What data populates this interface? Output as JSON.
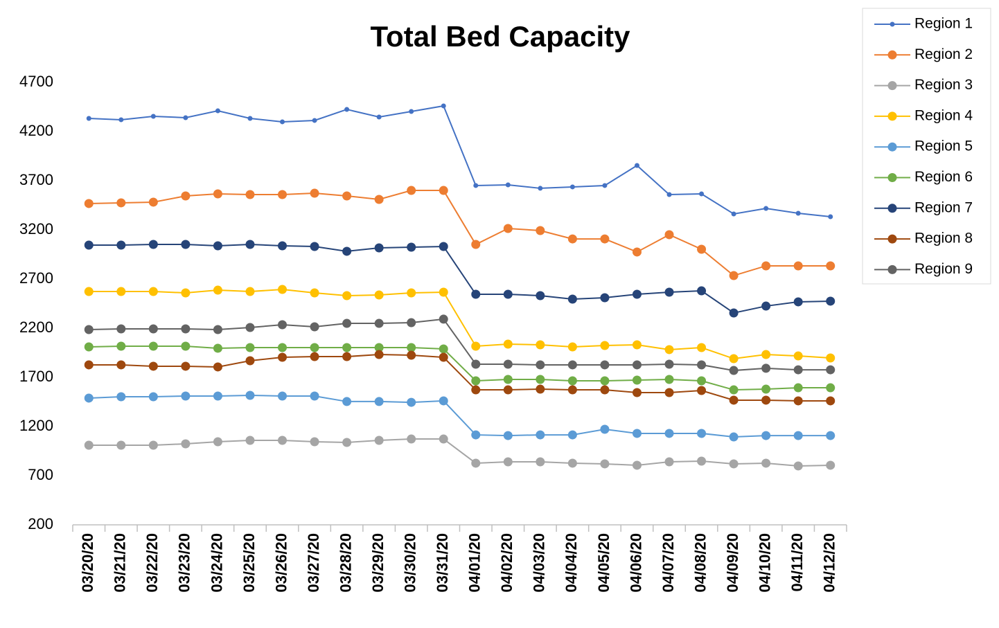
{
  "chart_data": {
    "type": "line",
    "title": "Total Bed Capacity",
    "categories": [
      "03/20/20",
      "03/21/20",
      "03/22/20",
      "03/23/20",
      "03/24/20",
      "03/25/20",
      "03/26/20",
      "03/27/20",
      "03/28/20",
      "03/29/20",
      "03/30/20",
      "03/31/20",
      "04/01/20",
      "04/02/20",
      "04/03/20",
      "04/04/20",
      "04/05/20",
      "04/06/20",
      "04/07/20",
      "04/08/20",
      "04/09/20",
      "04/10/20",
      "04/11/20",
      "04/12/20"
    ],
    "ylim": [
      200,
      4700
    ],
    "yticks": [
      200,
      700,
      1200,
      1700,
      2200,
      2700,
      3200,
      3700,
      4200,
      4700
    ],
    "grid": false,
    "legend": "right",
    "series": [
      {
        "name": "Region 1",
        "color": "#4472c4",
        "values": [
          4334,
          4320,
          4355,
          4341,
          4411,
          4334,
          4299,
          4313,
          4425,
          4348,
          4404,
          4461,
          3651,
          3658,
          3623,
          3637,
          3651,
          3855,
          3559,
          3566,
          3362,
          3418,
          3369,
          3334
        ]
      },
      {
        "name": "Region 2",
        "color": "#ed7d31",
        "values": [
          3468,
          3475,
          3482,
          3545,
          3566,
          3559,
          3559,
          3573,
          3545,
          3510,
          3601,
          3601,
          3052,
          3214,
          3193,
          3108,
          3108,
          2975,
          3151,
          3003,
          2735,
          2834,
          2834,
          2834
        ]
      },
      {
        "name": "Region 3",
        "color": "#a5a5a5",
        "values": [
          1010,
          1010,
          1010,
          1024,
          1045,
          1059,
          1059,
          1045,
          1038,
          1059,
          1073,
          1073,
          827,
          841,
          841,
          827,
          820,
          806,
          841,
          848,
          820,
          827,
          799,
          806
        ]
      },
      {
        "name": "Region 4",
        "color": "#ffc000",
        "values": [
          2573,
          2573,
          2573,
          2559,
          2587,
          2573,
          2594,
          2559,
          2531,
          2538,
          2559,
          2566,
          2017,
          2038,
          2031,
          2010,
          2024,
          2031,
          1982,
          2003,
          1890,
          1932,
          1918,
          1897
        ]
      },
      {
        "name": "Region 5",
        "color": "#5b9bd5",
        "values": [
          1489,
          1503,
          1503,
          1510,
          1510,
          1517,
          1510,
          1510,
          1454,
          1454,
          1446,
          1461,
          1115,
          1108,
          1115,
          1115,
          1172,
          1130,
          1130,
          1130,
          1094,
          1108,
          1108,
          1108
        ]
      },
      {
        "name": "Region 6",
        "color": "#70ad47",
        "values": [
          2010,
          2017,
          2017,
          2017,
          1996,
          2003,
          2003,
          2003,
          2003,
          2003,
          2003,
          1989,
          1665,
          1679,
          1679,
          1665,
          1665,
          1672,
          1679,
          1665,
          1573,
          1580,
          1594,
          1594
        ]
      },
      {
        "name": "Region 7",
        "color": "#264478",
        "values": [
          3045,
          3045,
          3052,
          3052,
          3038,
          3052,
          3038,
          3031,
          2982,
          3017,
          3024,
          3031,
          2545,
          2545,
          2531,
          2496,
          2510,
          2545,
          2566,
          2580,
          2355,
          2425,
          2468,
          2475
        ]
      },
      {
        "name": "Region 8",
        "color": "#9e480e",
        "values": [
          1827,
          1827,
          1813,
          1813,
          1806,
          1869,
          1904,
          1911,
          1911,
          1932,
          1925,
          1904,
          1573,
          1573,
          1580,
          1573,
          1573,
          1545,
          1545,
          1566,
          1468,
          1468,
          1461,
          1461
        ]
      },
      {
        "name": "Region 9",
        "color": "#636363",
        "values": [
          2186,
          2193,
          2193,
          2193,
          2186,
          2207,
          2235,
          2214,
          2249,
          2249,
          2256,
          2292,
          1834,
          1834,
          1827,
          1827,
          1827,
          1827,
          1834,
          1827,
          1770,
          1792,
          1777,
          1777
        ]
      }
    ]
  }
}
